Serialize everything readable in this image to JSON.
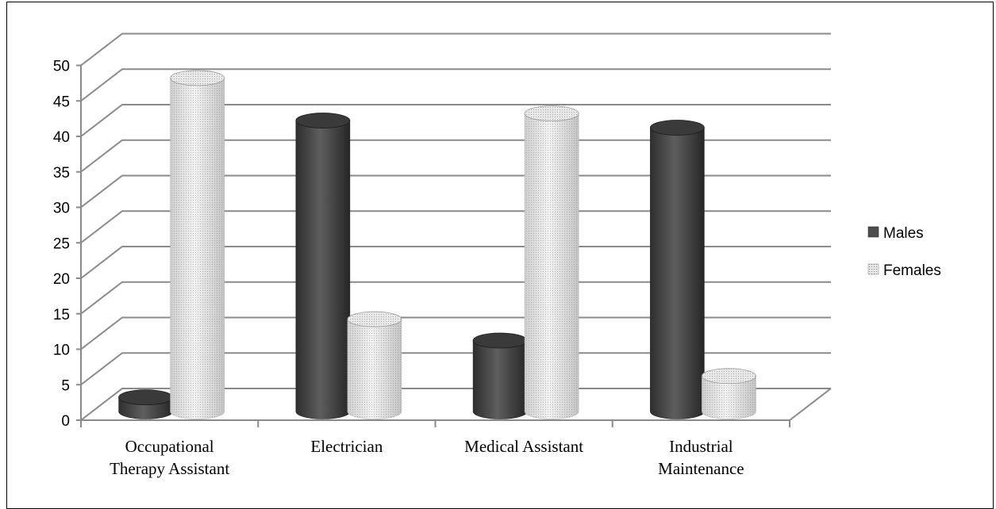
{
  "chart_data": {
    "type": "bar",
    "title": "",
    "xlabel": "",
    "ylabel": "",
    "categories": [
      [
        "Occupational",
        "Therapy Assistant"
      ],
      [
        "Electrician"
      ],
      [
        "Medical Assistant"
      ],
      [
        "Industrial",
        "Maintenance"
      ]
    ],
    "series": [
      {
        "name": "Males",
        "values": [
          2,
          41,
          10,
          40
        ],
        "color": "#4d4d4d"
      },
      {
        "name": "Females",
        "values": [
          47,
          13,
          42,
          5
        ],
        "color": "#dcdcdc"
      }
    ],
    "ylim": [
      0,
      50
    ],
    "yticks": [
      0,
      5,
      10,
      15,
      20,
      25,
      30,
      35,
      40,
      45,
      50
    ],
    "grid": true,
    "style": "3d-cylinder",
    "legend_position": "right"
  }
}
